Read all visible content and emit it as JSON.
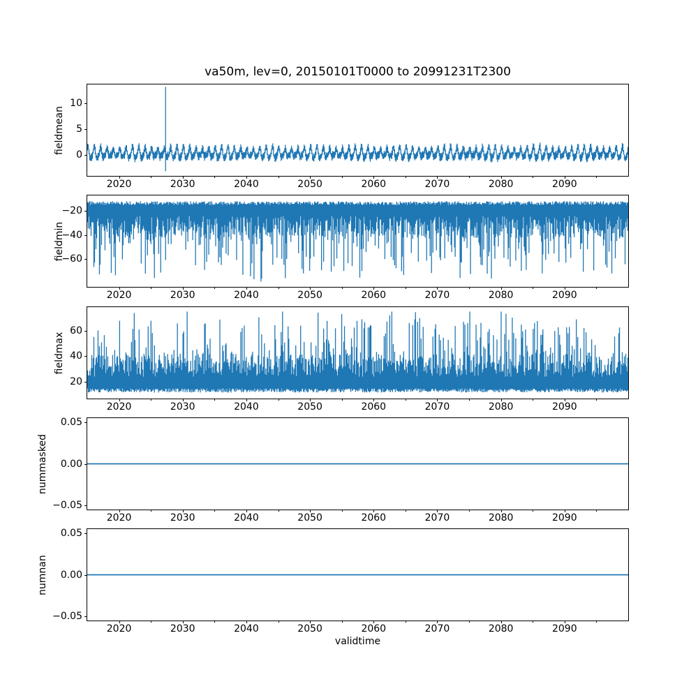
{
  "title": "va50m, lev=0, 20150101T0000 to 20991231T2300",
  "colors": {
    "line": "#1f77b4",
    "spine": "#000000",
    "text": "#000000",
    "background": "#ffffff"
  },
  "x_axis": {
    "label": "validtime",
    "xlim": [
      2015,
      2100
    ],
    "major_ticks": [
      {
        "value": 2020,
        "label": "2020"
      },
      {
        "value": 2030,
        "label": "2030"
      },
      {
        "value": 2040,
        "label": "2040"
      },
      {
        "value": 2050,
        "label": "2050"
      },
      {
        "value": 2060,
        "label": "2060"
      },
      {
        "value": 2070,
        "label": "2070"
      },
      {
        "value": 2080,
        "label": "2080"
      },
      {
        "value": 2090,
        "label": "2090"
      }
    ],
    "minor_ticks": [
      2025,
      2035,
      2045,
      2055,
      2065,
      2075,
      2085,
      2095
    ]
  },
  "chart_data": [
    {
      "type": "line",
      "name": "fieldmean",
      "ylabel": "fieldmean",
      "ylim": [
        -4.1,
        13.65
      ],
      "yticks": [
        {
          "value": 0,
          "label": "0"
        },
        {
          "value": 5,
          "label": "5"
        },
        {
          "value": 10,
          "label": "10"
        }
      ],
      "grid": false,
      "legend": null,
      "series": {
        "kind": "seasonal_band",
        "description": "noisy annual cycle around 0, typical range -1.5 to +2.3, hourly data 2015-2099",
        "seed": 17,
        "span_years": 85,
        "base": 0.25,
        "annual_amplitude": 1.05,
        "harmonic_amplitude": 0.3,
        "noise_halfwidth_min": 0.3,
        "noise_halfwidth_max": 0.7,
        "extra_jitter": 0.2,
        "spike": {
          "year": 2027.3,
          "ymin": -3.2,
          "ymax": 13.2
        }
      }
    },
    {
      "type": "line",
      "name": "fieldmin",
      "ylabel": "fieldmin",
      "ylim": [
        -82.9,
        -7.0
      ],
      "yticks": [
        {
          "value": -20,
          "label": "−20"
        },
        {
          "value": -40,
          "label": "−40"
        },
        {
          "value": -60,
          "label": "−60"
        }
      ],
      "grid": false,
      "legend": null,
      "series": {
        "kind": "lower_spikes",
        "description": "dense band from about -12 down to -35 with frequent downward spikes reaching about -78",
        "seed": 29,
        "edge": -11.8,
        "edge_jitter": 3.2,
        "body_min": 24,
        "body_max": 42,
        "spike_prob": 0.45,
        "spike_extra": 40,
        "floor": -78.5
      }
    },
    {
      "type": "line",
      "name": "fieldmax",
      "ylabel": "fieldmax",
      "ylim": [
        7.1,
        78.3
      ],
      "yticks": [
        {
          "value": 20,
          "label": "20"
        },
        {
          "value": 40,
          "label": "40"
        },
        {
          "value": 60,
          "label": "60"
        }
      ],
      "grid": false,
      "legend": null,
      "series": {
        "kind": "upper_spikes",
        "description": "dense band from about 12 up to 35 with frequent upward spikes reaching about 75",
        "seed": 43,
        "edge": 11.8,
        "edge_jitter": 3.2,
        "body_min": 24,
        "body_max": 42,
        "spike_prob": 0.45,
        "spike_extra": 38,
        "ceiling": 74.8
      }
    },
    {
      "type": "line",
      "name": "nummasked",
      "ylabel": "nummasked",
      "ylim": [
        -0.0555,
        0.0555
      ],
      "yticks": [
        {
          "value": 0.05,
          "label": "0.05"
        },
        {
          "value": 0.0,
          "label": "0.00"
        },
        {
          "value": -0.05,
          "label": "−0.05"
        }
      ],
      "grid": false,
      "legend": null,
      "series": {
        "kind": "constant",
        "value": 0.0
      }
    },
    {
      "type": "line",
      "name": "numnan",
      "ylabel": "numnan",
      "ylim": [
        -0.0555,
        0.0555
      ],
      "yticks": [
        {
          "value": 0.05,
          "label": "0.05"
        },
        {
          "value": 0.0,
          "label": "0.00"
        },
        {
          "value": -0.05,
          "label": "−0.05"
        }
      ],
      "grid": false,
      "legend": null,
      "series": {
        "kind": "constant",
        "value": 0.0
      }
    }
  ]
}
